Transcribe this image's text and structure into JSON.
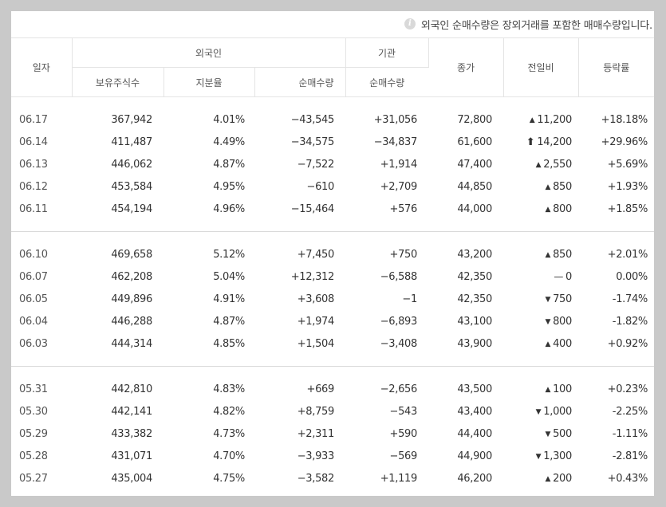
{
  "notice": "외국인 순매수량은 장외거래를 포함한 매매수량입니다.",
  "header": {
    "date": "일자",
    "foreign": "외국인",
    "institution": "기관",
    "close": "종가",
    "change": "전일비",
    "rate": "등락률",
    "holdings": "보유주식수",
    "share": "지분율",
    "foreign_net": "순매수량",
    "inst_net": "순매수량"
  },
  "colors": {
    "up": "#e0322b",
    "down": "#2656c2",
    "neutral": "#333333"
  },
  "groups": [
    [
      {
        "date": "06.17",
        "holdings": "367,942",
        "share": "4.01%",
        "foreign_net": "−43,545",
        "inst_net": "+31,056",
        "close": "72,800",
        "change": "11,200",
        "rate": "+18.18%",
        "dir": "up"
      },
      {
        "date": "06.14",
        "holdings": "411,487",
        "share": "4.49%",
        "foreign_net": "−34,575",
        "inst_net": "−34,837",
        "close": "61,600",
        "change": "14,200",
        "rate": "+29.96%",
        "dir": "limit-up"
      },
      {
        "date": "06.13",
        "holdings": "446,062",
        "share": "4.87%",
        "foreign_net": "−7,522",
        "inst_net": "+1,914",
        "close": "47,400",
        "change": "2,550",
        "rate": "+5.69%",
        "dir": "up"
      },
      {
        "date": "06.12",
        "holdings": "453,584",
        "share": "4.95%",
        "foreign_net": "−610",
        "inst_net": "+2,709",
        "close": "44,850",
        "change": "850",
        "rate": "+1.93%",
        "dir": "up"
      },
      {
        "date": "06.11",
        "holdings": "454,194",
        "share": "4.96%",
        "foreign_net": "−15,464",
        "inst_net": "+576",
        "close": "44,000",
        "change": "800",
        "rate": "+1.85%",
        "dir": "up"
      }
    ],
    [
      {
        "date": "06.10",
        "holdings": "469,658",
        "share": "5.12%",
        "foreign_net": "+7,450",
        "inst_net": "+750",
        "close": "43,200",
        "change": "850",
        "rate": "+2.01%",
        "dir": "up"
      },
      {
        "date": "06.07",
        "holdings": "462,208",
        "share": "5.04%",
        "foreign_net": "+12,312",
        "inst_net": "−6,588",
        "close": "42,350",
        "change": "0",
        "rate": "0.00%",
        "dir": "flat"
      },
      {
        "date": "06.05",
        "holdings": "449,896",
        "share": "4.91%",
        "foreign_net": "+3,608",
        "inst_net": "−1",
        "close": "42,350",
        "change": "750",
        "rate": "-1.74%",
        "dir": "down"
      },
      {
        "date": "06.04",
        "holdings": "446,288",
        "share": "4.87%",
        "foreign_net": "+1,974",
        "inst_net": "−6,893",
        "close": "43,100",
        "change": "800",
        "rate": "-1.82%",
        "dir": "down"
      },
      {
        "date": "06.03",
        "holdings": "444,314",
        "share": "4.85%",
        "foreign_net": "+1,504",
        "inst_net": "−3,408",
        "close": "43,900",
        "change": "400",
        "rate": "+0.92%",
        "dir": "up"
      }
    ],
    [
      {
        "date": "05.31",
        "holdings": "442,810",
        "share": "4.83%",
        "foreign_net": "+669",
        "inst_net": "−2,656",
        "close": "43,500",
        "change": "100",
        "rate": "+0.23%",
        "dir": "up"
      },
      {
        "date": "05.30",
        "holdings": "442,141",
        "share": "4.82%",
        "foreign_net": "+8,759",
        "inst_net": "−543",
        "close": "43,400",
        "change": "1,000",
        "rate": "-2.25%",
        "dir": "down"
      },
      {
        "date": "05.29",
        "holdings": "433,382",
        "share": "4.73%",
        "foreign_net": "+2,311",
        "inst_net": "+590",
        "close": "44,400",
        "change": "500",
        "rate": "-1.11%",
        "dir": "down"
      },
      {
        "date": "05.28",
        "holdings": "431,071",
        "share": "4.70%",
        "foreign_net": "−3,933",
        "inst_net": "−569",
        "close": "44,900",
        "change": "1,300",
        "rate": "-2.81%",
        "dir": "down"
      },
      {
        "date": "05.27",
        "holdings": "435,004",
        "share": "4.75%",
        "foreign_net": "−3,582",
        "inst_net": "+1,119",
        "close": "46,200",
        "change": "200",
        "rate": "+0.43%",
        "dir": "up"
      }
    ]
  ]
}
